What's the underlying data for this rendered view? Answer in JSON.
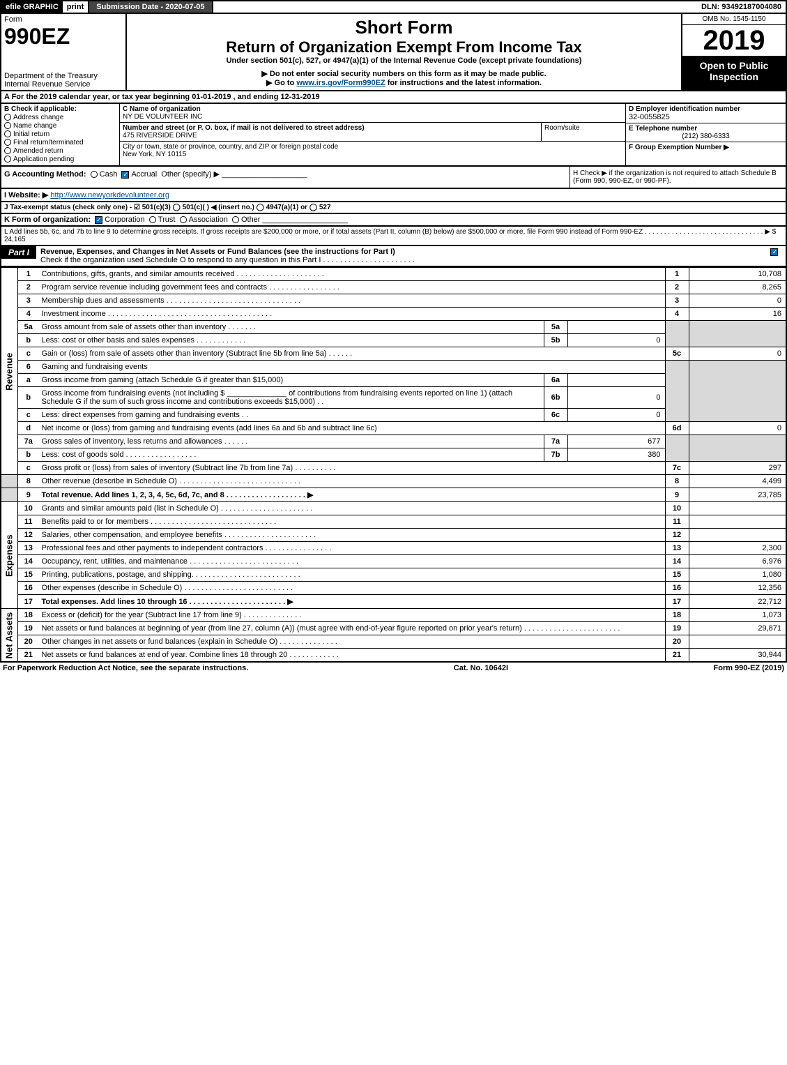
{
  "topbar": {
    "efile": "efile GRAPHIC",
    "print": "print",
    "subdate": "Submission Date - 2020-07-05",
    "dln": "DLN: 93492187004080"
  },
  "header": {
    "form_label": "Form",
    "form_no": "990EZ",
    "dept1": "Department of the Treasury",
    "dept2": "Internal Revenue Service",
    "short": "Short Form",
    "return_title": "Return of Organization Exempt From Income Tax",
    "under": "Under section 501(c), 527, or 4947(a)(1) of the Internal Revenue Code (except private foundations)",
    "donot": "▶ Do not enter social security numbers on this form as it may be made public.",
    "goto_pre": "▶ Go to ",
    "goto_link": "www.irs.gov/Form990EZ",
    "goto_post": " for instructions and the latest information.",
    "omb": "OMB No. 1545-1150",
    "year": "2019",
    "open": "Open to Public Inspection"
  },
  "row_a": "A  For the 2019 calendar year, or tax year beginning 01-01-2019 , and ending 12-31-2019",
  "section_b": {
    "title": "B  Check if applicable:",
    "opts": [
      "Address change",
      "Name change",
      "Initial return",
      "Final return/terminated",
      "Amended return",
      "Application pending"
    ]
  },
  "section_c": {
    "c_label": "C Name of organization",
    "org_name": "NY DE VOLUNTEER INC",
    "street_label": "Number and street (or P. O. box, if mail is not delivered to street address)",
    "street": "475 RIVERSIDE DRIVE",
    "room_label": "Room/suite",
    "city_label": "City or town, state or province, country, and ZIP or foreign postal code",
    "city": "New York, NY  10115"
  },
  "section_d": {
    "d_label": "D Employer identification number",
    "ein": "32-0055825",
    "e_label": "E Telephone number",
    "phone": "(212) 380-6333",
    "f_label": "F Group Exemption Number  ▶"
  },
  "row_g": {
    "g_left_label": "G Accounting Method:",
    "g_cash": "Cash",
    "g_accrual": "Accrual",
    "g_other": "Other (specify) ▶",
    "h_text": "H  Check ▶        if the organization is not required to attach Schedule B (Form 990, 990-EZ, or 990-PF)."
  },
  "row_i": {
    "label": "I Website: ▶",
    "url": "http://www.newyorkdevolunteer.org"
  },
  "row_j": "J Tax-exempt status (check only one) -  ☑ 501(c)(3)  ◯ 501(c)(  ) ◀ (insert no.)  ◯ 4947(a)(1) or  ◯ 527",
  "row_k": {
    "label": "K Form of organization:",
    "opts": [
      "Corporation",
      "Trust",
      "Association",
      "Other"
    ]
  },
  "row_l": {
    "text": "L Add lines 5b, 6c, and 7b to line 9 to determine gross receipts. If gross receipts are $200,000 or more, or if total assets (Part II, column (B) below) are $500,000 or more, file Form 990 instead of Form 990-EZ . . . . . . . . . . . . . . . . . . . . . . . . . . . . . . . ▶ $",
    "amount": "24,165"
  },
  "part1": {
    "label": "Part I",
    "title": "Revenue, Expenses, and Changes in Net Assets or Fund Balances (see the instructions for Part I)",
    "sub": "Check if the organization used Schedule O to respond to any question in this Part I . . . . . . . . . . . . . . . . . . . . . ."
  },
  "sides": {
    "revenue": "Revenue",
    "expenses": "Expenses",
    "netassets": "Net Assets"
  },
  "lines": {
    "l1": {
      "n": "1",
      "t": "Contributions, gifts, grants, and similar amounts received . . . . . . . . . . . . . . . . . . . . .",
      "r": "1",
      "a": "10,708"
    },
    "l2": {
      "n": "2",
      "t": "Program service revenue including government fees and contracts . . . . . . . . . . . . . . . . .",
      "r": "2",
      "a": "8,265"
    },
    "l3": {
      "n": "3",
      "t": "Membership dues and assessments . . . . . . . . . . . . . . . . . . . . . . . . . . . . . . . .",
      "r": "3",
      "a": "0"
    },
    "l4": {
      "n": "4",
      "t": "Investment income . . . . . . . . . . . . . . . . . . . . . . . . . . . . . . . . . . . . . . .",
      "r": "4",
      "a": "16"
    },
    "l5a": {
      "n": "5a",
      "t": "Gross amount from sale of assets other than inventory . . . . . . .",
      "b": "5a",
      "v": ""
    },
    "l5b": {
      "n": "b",
      "t": "Less: cost or other basis and sales expenses . . . . . . . . . . . .",
      "b": "5b",
      "v": "0"
    },
    "l5c": {
      "n": "c",
      "t": "Gain or (loss) from sale of assets other than inventory (Subtract line 5b from line 5a) . . . . . .",
      "r": "5c",
      "a": "0"
    },
    "l6": {
      "n": "6",
      "t": "Gaming and fundraising events"
    },
    "l6a": {
      "n": "a",
      "t": "Gross income from gaming (attach Schedule G if greater than $15,000)",
      "b": "6a",
      "v": ""
    },
    "l6b": {
      "n": "b",
      "t": "Gross income from fundraising events (not including $ ______________ of contributions from fundraising events reported on line 1) (attach Schedule G if the sum of such gross income and contributions exceeds $15,000)   . .",
      "b": "6b",
      "v": "0"
    },
    "l6c": {
      "n": "c",
      "t": "Less: direct expenses from gaming and fundraising events      . .",
      "b": "6c",
      "v": "0"
    },
    "l6d": {
      "n": "d",
      "t": "Net income or (loss) from gaming and fundraising events (add lines 6a and 6b and subtract line 6c)",
      "r": "6d",
      "a": "0"
    },
    "l7a": {
      "n": "7a",
      "t": "Gross sales of inventory, less returns and allowances . . . . . .",
      "b": "7a",
      "v": "677"
    },
    "l7b": {
      "n": "b",
      "t": "Less: cost of goods sold       . . . . . . . . . . . . . . . . .",
      "b": "7b",
      "v": "380"
    },
    "l7c": {
      "n": "c",
      "t": "Gross profit or (loss) from sales of inventory (Subtract line 7b from line 7a) . . . . . . . . . .",
      "r": "7c",
      "a": "297"
    },
    "l8": {
      "n": "8",
      "t": "Other revenue (describe in Schedule O) . . . . . . . . . . . . . . . . . . . . . . . . . . . . .",
      "r": "8",
      "a": "4,499"
    },
    "l9": {
      "n": "9",
      "t": "Total revenue. Add lines 1, 2, 3, 4, 5c, 6d, 7c, and 8  . . . . . . . . . . . . . . . . . . .   ▶",
      "r": "9",
      "a": "23,785",
      "bold": true
    },
    "l10": {
      "n": "10",
      "t": "Grants and similar amounts paid (list in Schedule O) . . . . . . . . . . . . . . . . . . . . . .",
      "r": "10",
      "a": ""
    },
    "l11": {
      "n": "11",
      "t": "Benefits paid to or for members     . . . . . . . . . . . . . . . . . . . . . . . . . . . . . .",
      "r": "11",
      "a": ""
    },
    "l12": {
      "n": "12",
      "t": "Salaries, other compensation, and employee benefits . . . . . . . . . . . . . . . . . . . . . .",
      "r": "12",
      "a": ""
    },
    "l13": {
      "n": "13",
      "t": "Professional fees and other payments to independent contractors . . . . . . . . . . . . . . . .",
      "r": "13",
      "a": "2,300"
    },
    "l14": {
      "n": "14",
      "t": "Occupancy, rent, utilities, and maintenance . . . . . . . . . . . . . . . . . . . . . . . . . .",
      "r": "14",
      "a": "6,976"
    },
    "l15": {
      "n": "15",
      "t": "Printing, publications, postage, and shipping. . . . . . . . . . . . . . . . . . . . . . . . . .",
      "r": "15",
      "a": "1,080"
    },
    "l16": {
      "n": "16",
      "t": "Other expenses (describe in Schedule O)     . . . . . . . . . . . . . . . . . . . . . . . . . .",
      "r": "16",
      "a": "12,356"
    },
    "l17": {
      "n": "17",
      "t": "Total expenses. Add lines 10 through 16     . . . . . . . . . . . . . . . . . . . . . . .   ▶",
      "r": "17",
      "a": "22,712",
      "bold": true
    },
    "l18": {
      "n": "18",
      "t": "Excess or (deficit) for the year (Subtract line 17 from line 9)       . . . . . . . . . . . . . .",
      "r": "18",
      "a": "1,073"
    },
    "l19": {
      "n": "19",
      "t": "Net assets or fund balances at beginning of year (from line 27, column (A)) (must agree with end-of-year figure reported on prior year's return) . . . . . . . . . . . . . . . . . . . . . . .",
      "r": "19",
      "a": "29,871"
    },
    "l20": {
      "n": "20",
      "t": "Other changes in net assets or fund balances (explain in Schedule O) . . . . . . . . . . . . . .",
      "r": "20",
      "a": ""
    },
    "l21": {
      "n": "21",
      "t": "Net assets or fund balances at end of year. Combine lines 18 through 20 . . . . . . . . . . . .",
      "r": "21",
      "a": "30,944"
    }
  },
  "footer": {
    "left": "For Paperwork Reduction Act Notice, see the separate instructions.",
    "mid": "Cat. No. 10642I",
    "right": "Form 990-EZ (2019)"
  },
  "style": {
    "background": "#ffffff",
    "text_color": "#000000",
    "header_black": "#000000",
    "shade": "#d9d9d9",
    "link_color": "#004b87",
    "check_blue": "#0070c0",
    "font_base": 11
  }
}
